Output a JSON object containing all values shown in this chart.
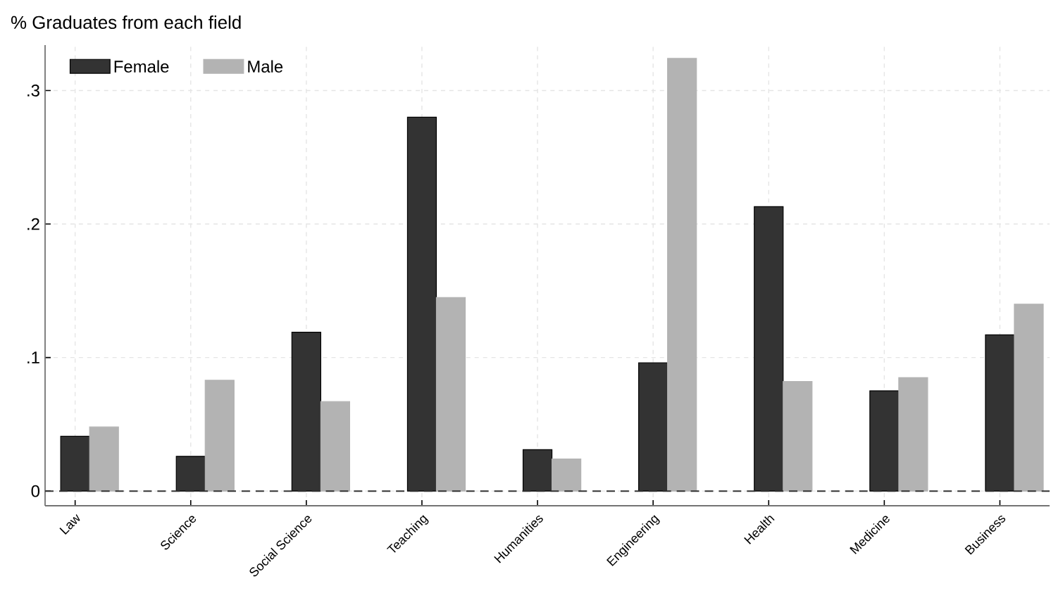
{
  "chart_data": {
    "type": "bar",
    "title": "% Graduates from each field",
    "categories": [
      "Law",
      "Science",
      "Social Science",
      "Teaching",
      "Humanities",
      "Engineering",
      "Health",
      "Medicine",
      "Business"
    ],
    "series": [
      {
        "name": "Female",
        "color": "#333333",
        "values": [
          0.041,
          0.026,
          0.119,
          0.28,
          0.031,
          0.096,
          0.213,
          0.075,
          0.117
        ]
      },
      {
        "name": "Male",
        "color": "#b3b3b3",
        "values": [
          0.048,
          0.083,
          0.067,
          0.145,
          0.024,
          0.324,
          0.082,
          0.085,
          0.14
        ]
      }
    ],
    "ylim": [
      -0.011,
      0.334
    ],
    "yticks": [
      0,
      {
        "value": 0.1,
        "label": ".1"
      },
      {
        "value": 0.2,
        "label": ".2"
      },
      {
        "value": 0.3,
        "label": ".3"
      }
    ],
    "grid": true,
    "legend": "top left",
    "ref_lines": [
      {
        "axis": "y",
        "value": 0,
        "line_style": "dashed",
        "color": "#333333"
      }
    ]
  }
}
